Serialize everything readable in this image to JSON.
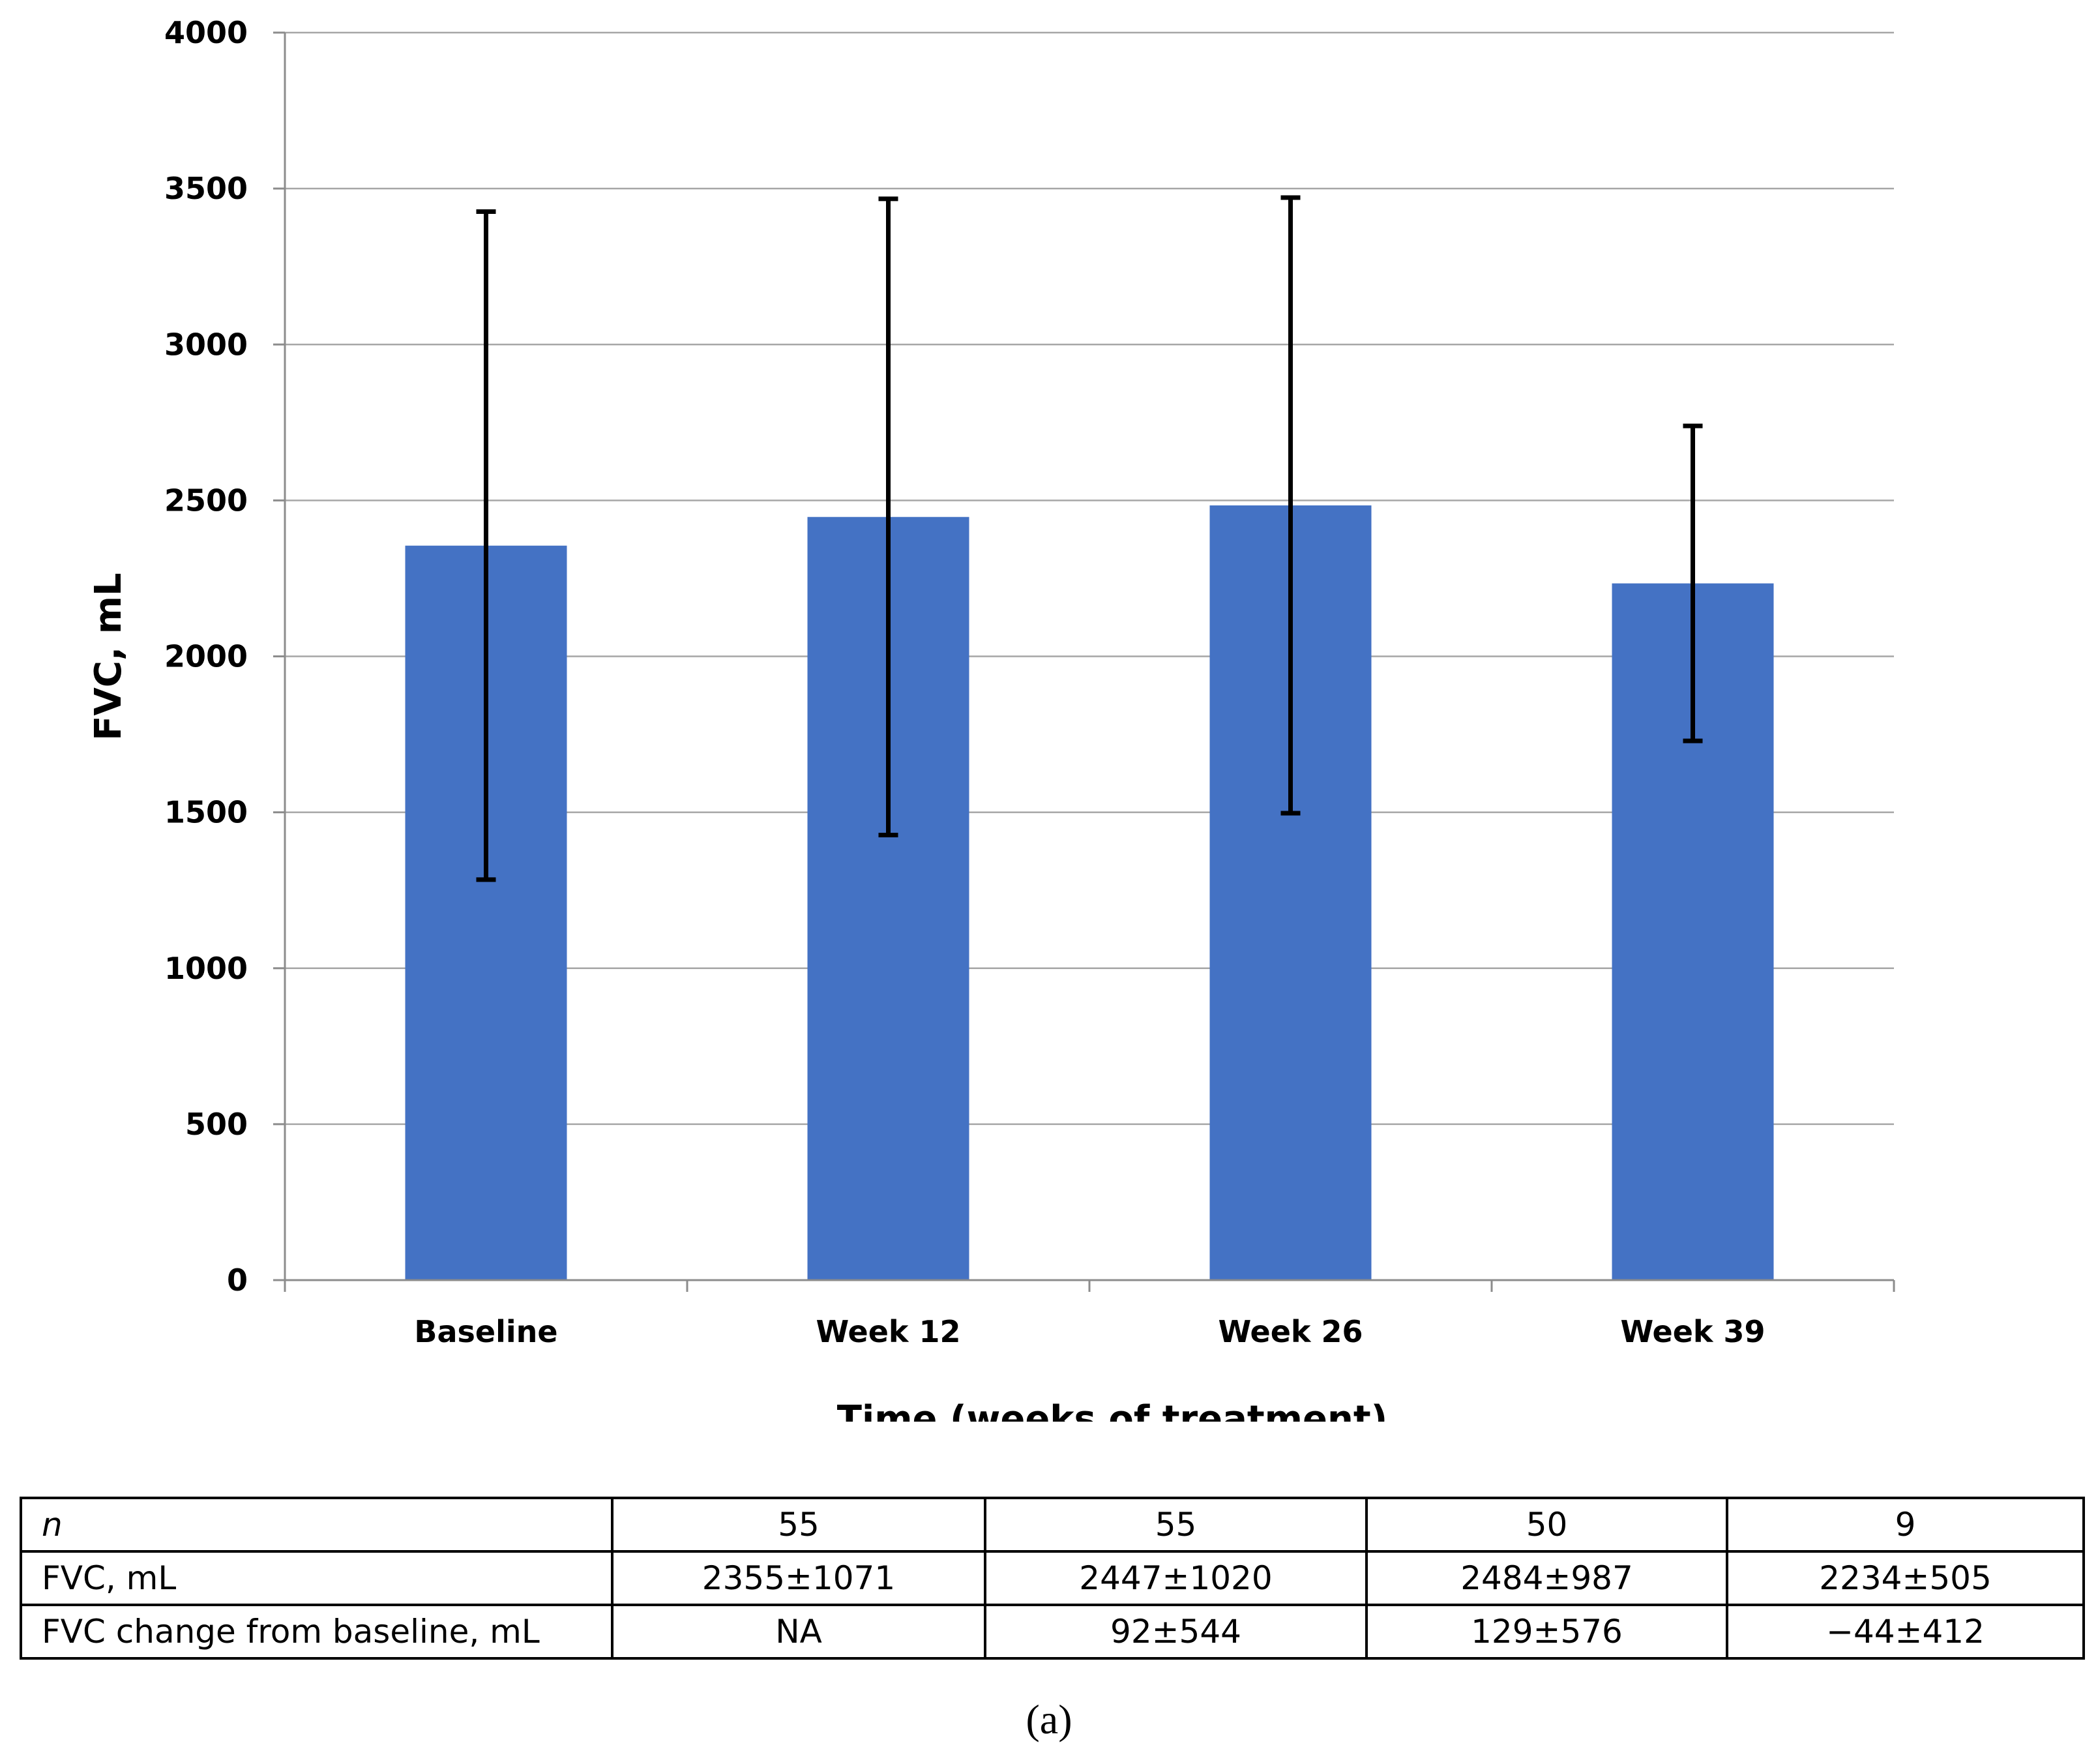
{
  "chart_data": {
    "type": "bar",
    "title": "",
    "xlabel": "Time (weeks of treatment)",
    "ylabel": "FVC, mL",
    "ylim": [
      0,
      4000
    ],
    "yticks": [
      "0",
      "500",
      "1000",
      "1500",
      "2000",
      "2500",
      "3000",
      "3500",
      "4000"
    ],
    "ytick_values": [
      0,
      500,
      1000,
      1500,
      2000,
      2500,
      3000,
      3500,
      4000
    ],
    "grid": true,
    "categories": [
      "Baseline",
      "Week 12",
      "Week 26",
      "Week 39"
    ],
    "values": [
      2355,
      2447,
      2484,
      2234
    ],
    "errors": [
      1071,
      1020,
      987,
      505
    ],
    "bar_color": "#4472C4"
  },
  "table": {
    "rows": [
      {
        "label": "n",
        "italic": true,
        "cells": [
          "55",
          "55",
          "50",
          "9"
        ]
      },
      {
        "label": "FVC, mL",
        "italic": false,
        "cells": [
          "2355±1071",
          "2447±1020",
          "2484±987",
          "2234±505"
        ]
      },
      {
        "label": "FVC change from baseline, mL",
        "italic": false,
        "cells": [
          "NA",
          "92±544",
          "129±576",
          "−44±412"
        ]
      }
    ]
  },
  "caption": "(a)"
}
